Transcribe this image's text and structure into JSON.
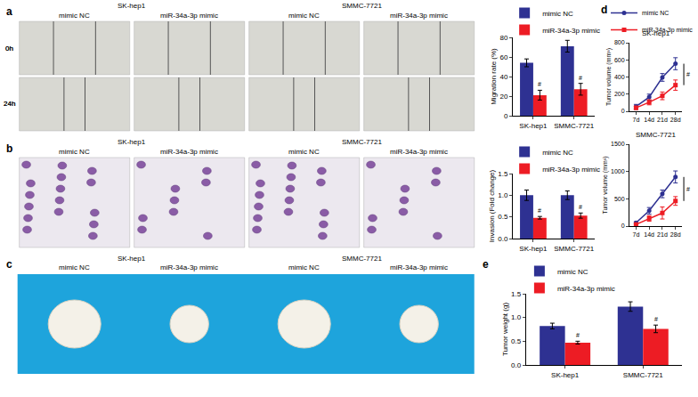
{
  "image_panels": [
    {
      "panel": "a",
      "groups": [
        {
          "label": "SK-hep1",
          "columns": [
            "mimic NC",
            "miR-34a-3p mimic"
          ]
        },
        {
          "label": "SMMC-7721",
          "columns": [
            "mimic NC",
            "miR-34a-3p mimic"
          ]
        }
      ],
      "rows": [
        "0h",
        "24h"
      ]
    },
    {
      "panel": "b",
      "groups": [
        {
          "label": "SK-hep1",
          "columns": [
            "mimic NC",
            "miR-34a-3p mimic"
          ]
        },
        {
          "label": "SMMC-7721",
          "columns": [
            "mimic NC",
            "miR-34a-3p mimic"
          ]
        }
      ]
    },
    {
      "panel": "c",
      "groups": [
        {
          "label": "SK-hep1",
          "columns": [
            "mimic NC",
            "miR-34a-3p mimic"
          ]
        },
        {
          "label": "SMMC-7721",
          "columns": [
            "mimic NC",
            "miR-34a-3p mimic"
          ]
        }
      ]
    }
  ],
  "chart_data": [
    {
      "type": "bar",
      "y_label": "Migration rate (%)",
      "categories": [
        "SK-hep1",
        "SMMC-7721"
      ],
      "series": [
        {
          "name": "mimic NC",
          "color": "#2e3192",
          "values": [
            54,
            71
          ],
          "errors": [
            4,
            6
          ]
        },
        {
          "name": "miR-34a-3p mimic",
          "color": "#ed1c24",
          "values": [
            21,
            27
          ],
          "errors": [
            5,
            6
          ]
        }
      ],
      "ylim": [
        0,
        80
      ],
      "yticks": [
        0,
        20,
        40,
        60,
        80
      ],
      "grid": false,
      "legend": "top",
      "annotations": [
        {
          "text": "#",
          "category": "SK-hep1",
          "series": "miR-34a-3p mimic"
        },
        {
          "text": "#",
          "category": "SMMC-7721",
          "series": "miR-34a-3p mimic"
        }
      ]
    },
    {
      "type": "bar",
      "y_label": "Invasion (Fold change)",
      "categories": [
        "SK-hep1",
        "SMMC-7721"
      ],
      "series": [
        {
          "name": "mimic NC",
          "color": "#2e3192",
          "values": [
            1.0,
            1.0
          ],
          "errors": [
            0.12,
            0.1
          ]
        },
        {
          "name": "miR-34a-3p mimic",
          "color": "#ed1c24",
          "values": [
            0.48,
            0.53
          ],
          "errors": [
            0.03,
            0.06
          ]
        }
      ],
      "ylim": [
        0,
        1.5
      ],
      "yticks": [
        {
          "value": 0,
          "label": "0.0"
        },
        0.5,
        {
          "value": 1,
          "label": "1.0"
        },
        1.5
      ],
      "grid": false,
      "legend": "top",
      "annotations": [
        {
          "text": "#",
          "category": "SK-hep1",
          "series": "miR-34a-3p mimic"
        },
        {
          "text": "#",
          "category": "SMMC-7721",
          "series": "miR-34a-3p mimic"
        }
      ]
    },
    {
      "type": "line",
      "panel": "d",
      "title": "SK-hep1",
      "y_label": "Tumor volume (mm³)",
      "categories": [
        "7d",
        "14d",
        "21d",
        "28d"
      ],
      "series": [
        {
          "name": "mimic NC",
          "color": "#2e3192",
          "marker": "circle",
          "line_style": "solid",
          "values": [
            55,
            165,
            395,
            555
          ],
          "errors": [
            25,
            35,
            45,
            70
          ]
        },
        {
          "name": "miR-34a-3p mimic",
          "color": "#ed1c24",
          "marker": "square",
          "line_style": "solid",
          "values": [
            40,
            105,
            180,
            305
          ],
          "errors": [
            20,
            30,
            45,
            60
          ]
        }
      ],
      "ylim": [
        0,
        800
      ],
      "yticks": [
        0,
        200,
        400,
        600,
        800
      ],
      "grid": false,
      "legend": "top",
      "annotations": [
        {
          "text": "#",
          "category": "28d"
        }
      ]
    },
    {
      "type": "line",
      "title": "SMMC-7721",
      "y_label": "Tumor volume (mm³)",
      "categories": [
        "7d",
        "14d",
        "21d",
        "28d"
      ],
      "series": [
        {
          "name": "mimic NC",
          "color": "#2e3192",
          "marker": "circle",
          "line_style": "solid",
          "values": [
            60,
            280,
            590,
            900
          ],
          "errors": [
            20,
            60,
            70,
            110
          ]
        },
        {
          "name": "miR-34a-3p mimic",
          "color": "#ed1c24",
          "marker": "square",
          "line_style": "solid",
          "values": [
            30,
            140,
            240,
            460
          ],
          "errors": [
            15,
            50,
            110,
            80
          ]
        }
      ],
      "ylim": [
        0,
        1500
      ],
      "yticks": [
        0,
        500,
        1000,
        1500
      ],
      "grid": false,
      "annotations": [
        {
          "text": "#",
          "category": "28d"
        }
      ]
    },
    {
      "type": "bar",
      "panel": "e",
      "y_label": "Tumor weight (g)",
      "categories": [
        "SK-hep1",
        "SMMC-7721"
      ],
      "series": [
        {
          "name": "mimic NC",
          "color": "#2e3192",
          "values": [
            0.82,
            1.23
          ],
          "errors": [
            0.06,
            0.1
          ]
        },
        {
          "name": "miR-34a-3p mimic",
          "color": "#ed1c24",
          "values": [
            0.47,
            0.76
          ],
          "errors": [
            0.03,
            0.08
          ]
        }
      ],
      "ylim": [
        0,
        1.5
      ],
      "yticks": [
        {
          "value": 0,
          "label": "0.0"
        },
        0.5,
        {
          "value": 1,
          "label": "1.0"
        },
        1.5
      ],
      "grid": false,
      "legend": "top",
      "annotations": [
        {
          "text": "#",
          "category": "SK-hep1",
          "series": "miR-34a-3p mimic"
        },
        {
          "text": "#",
          "category": "SMMC-7721",
          "series": "miR-34a-3p mimic"
        }
      ]
    }
  ]
}
